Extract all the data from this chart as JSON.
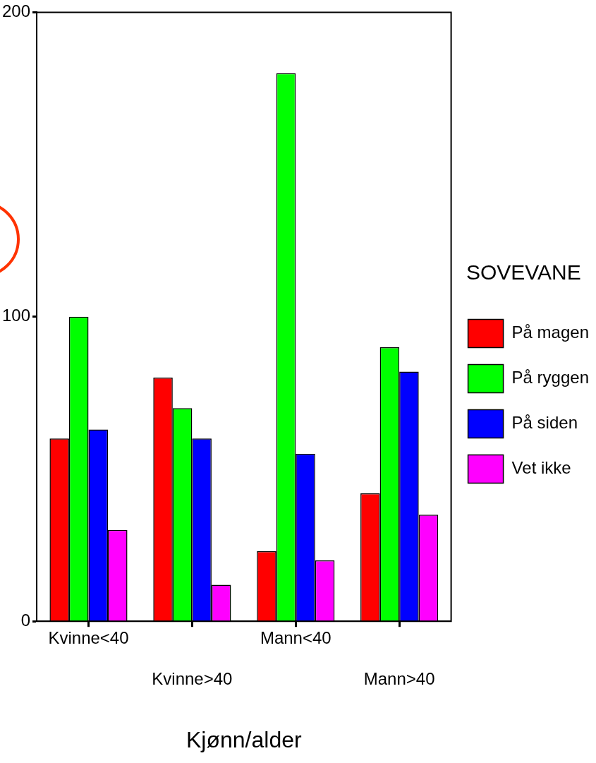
{
  "chart_data": {
    "type": "bar",
    "xlabel": "Kjønn/alder",
    "legend_title": "SOVEVANE",
    "categories": [
      "Kvinne<40",
      "Kvinne>40",
      "Mann<40",
      "Mann>40"
    ],
    "series": [
      {
        "name": "På magen",
        "color": "#ff0000",
        "values": [
          60,
          80,
          23,
          42
        ]
      },
      {
        "name": "På ryggen",
        "color": "#00ff00",
        "values": [
          100,
          70,
          180,
          90
        ]
      },
      {
        "name": "På siden",
        "color": "#0000ff",
        "values": [
          63,
          60,
          55,
          82
        ]
      },
      {
        "name": "Vet ikke",
        "color": "#ff00ff",
        "values": [
          30,
          12,
          20,
          35
        ]
      }
    ],
    "ylim": [
      0,
      200
    ],
    "yticks": [
      0,
      100,
      200
    ],
    "grid": false,
    "legend": "right"
  }
}
